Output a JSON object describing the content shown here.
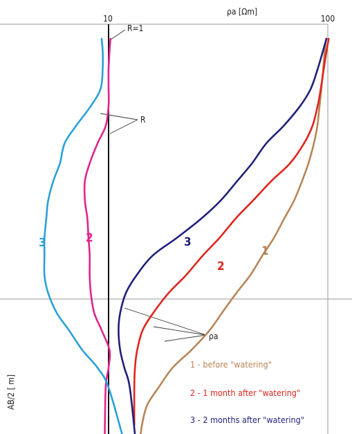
{
  "chart_data": {
    "type": "line",
    "title": "",
    "xlabel": "ρa [Ωm]",
    "ylabel": "AB/2 [ m]",
    "x_scale": "log",
    "x_ticks": [
      "10",
      "100"
    ],
    "grid": true,
    "annotations": {
      "r_equals_1": "R=1",
      "r": "R",
      "rho_a": "ρa"
    },
    "series": [
      {
        "name": "1 - before \"watering\"",
        "label": "1",
        "kind": "ρa",
        "color": "#b88457",
        "x": [
          98.2,
          96.8,
          95.3,
          93.5,
          91.7,
          89.6,
          86.4,
          81.6,
          76.4,
          70.1,
          63.4,
          56.7,
          50.3,
          44.2,
          38.3,
          32.9,
          28.9,
          23.8,
          19.6,
          16.9,
          15.0,
          14.2,
          13.9
        ],
        "y": [
          0.01,
          0.015,
          0.022,
          0.03,
          0.037,
          0.045,
          0.052,
          0.06,
          0.067,
          0.075,
          0.082,
          0.09,
          0.097,
          0.105,
          0.112,
          0.12,
          0.127,
          0.135,
          0.142,
          0.15,
          0.157,
          0.165,
          0.172
        ]
      },
      {
        "name": "2 - 1 month after \"watering\"",
        "label": "2",
        "kind": "ρa",
        "color": "#e0241c",
        "x": [
          101.0,
          98.6,
          95.9,
          92.9,
          89.9,
          85.1,
          77.9,
          67.2,
          55.4,
          45.5,
          38.1,
          32.0,
          26.9,
          22.5,
          18.8,
          16.0,
          14.3,
          13.5,
          13.2,
          13.1,
          13.1
        ],
        "y": [
          0.01,
          0.015,
          0.022,
          0.03,
          0.037,
          0.045,
          0.052,
          0.06,
          0.067,
          0.075,
          0.082,
          0.09,
          0.097,
          0.105,
          0.112,
          0.12,
          0.127,
          0.135,
          0.142,
          0.15,
          0.165
        ]
      },
      {
        "name": "3 - 2 months after \"watering\"",
        "label": "3",
        "kind": "ρa",
        "color": "#1f1f7a",
        "x": [
          98.6,
          95.0,
          90.0,
          83.7,
          74.8,
          62.8,
          52.4,
          45.1,
          38.7,
          32.4,
          26.6,
          20.4,
          15.9,
          13.4,
          12.0,
          11.3,
          11.1,
          11.3,
          11.8,
          12.5,
          13.3
        ],
        "y": [
          0.01,
          0.015,
          0.022,
          0.03,
          0.037,
          0.045,
          0.052,
          0.06,
          0.067,
          0.075,
          0.082,
          0.09,
          0.097,
          0.105,
          0.112,
          0.12,
          0.127,
          0.135,
          0.142,
          0.15,
          0.172
        ]
      },
      {
        "label": "2",
        "kind": "R",
        "color": "#e0248c",
        "x": [
          10.2,
          10.1,
          10.0,
          10.0,
          10.0,
          9.7,
          8.9,
          8.2,
          7.8,
          7.8,
          8.0,
          8.1,
          8.2,
          8.2,
          8.3,
          8.6,
          9.3,
          10.1,
          10.0,
          9.7,
          9.6
        ],
        "y": [
          0.01,
          0.015,
          0.022,
          0.03,
          0.037,
          0.045,
          0.052,
          0.06,
          0.067,
          0.075,
          0.082,
          0.09,
          0.097,
          0.105,
          0.112,
          0.12,
          0.127,
          0.135,
          0.142,
          0.15,
          0.172
        ]
      },
      {
        "label": "3",
        "kind": "R",
        "color": "#2aa0d8",
        "x": [
          9.3,
          9.4,
          9.4,
          9.2,
          8.3,
          7.1,
          6.3,
          6.0,
          5.6,
          5.3,
          5.2,
          5.1,
          5.1,
          5.1,
          5.3,
          5.8,
          6.6,
          7.6,
          8.9,
          10.0,
          11.8
        ],
        "y": [
          0.01,
          0.015,
          0.022,
          0.03,
          0.037,
          0.045,
          0.052,
          0.06,
          0.067,
          0.075,
          0.082,
          0.09,
          0.097,
          0.105,
          0.112,
          0.12,
          0.127,
          0.135,
          0.142,
          0.15,
          0.172
        ]
      }
    ]
  }
}
